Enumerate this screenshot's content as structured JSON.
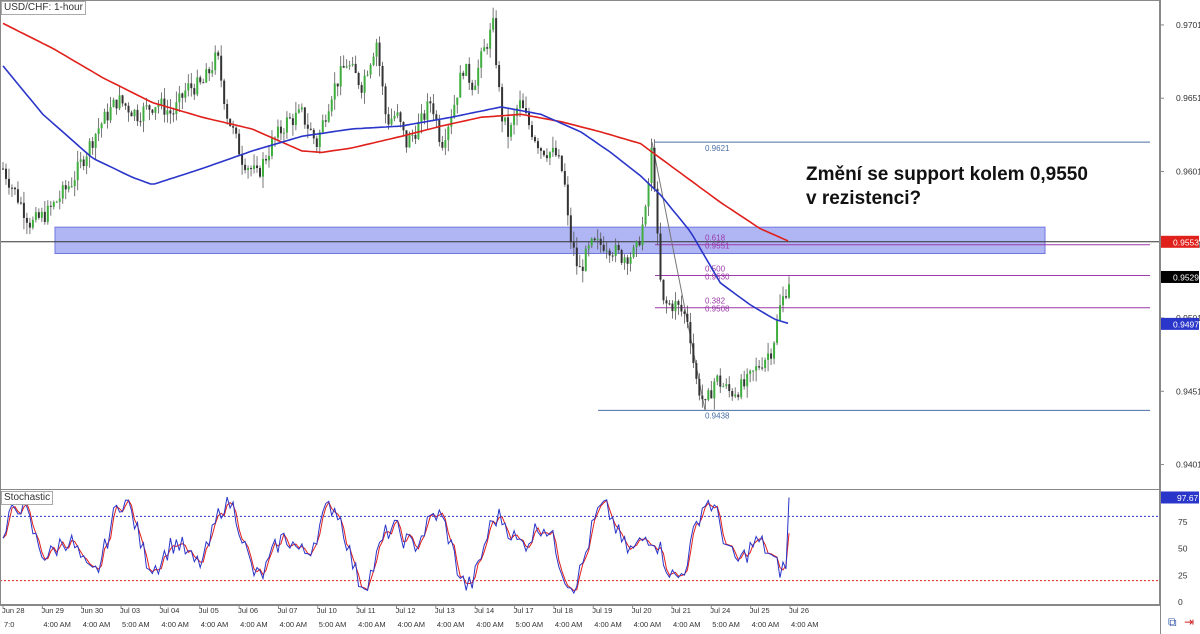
{
  "window": {
    "symbol_title": "USD/CHF: 1-hour",
    "indicator_title": "Stochastic"
  },
  "annotation": {
    "line1": "Změní se support kolem 0,9550",
    "line2": "v rezistenci?"
  },
  "colors": {
    "ma_fast": "#2a35c9",
    "ma_slow": "#e0201b",
    "support_zone": "#8f96f0",
    "fib_line": "#9b3aa8",
    "stoch_k": "#2a35c9",
    "stoch_d": "#e0201b"
  },
  "icons": [
    "layers-icon",
    "arrow-right-icon"
  ],
  "chart_data": [
    {
      "type": "candlestick",
      "title": "USD/CHF: 1-hour",
      "ylim": [
        0.9385,
        0.9718
      ],
      "y_ticks": [
        "0.9701",
        "0.9651",
        "0.9601",
        "0.9551",
        "0.9501",
        "0.9451",
        "0.9401"
      ],
      "y_tick_values": [
        0.9701,
        0.9651,
        0.9601,
        0.9551,
        0.9501,
        0.9451,
        0.9401
      ],
      "price_labels": [
        {
          "text": "0.9553",
          "value": 0.9553,
          "color": "#e0201b"
        },
        {
          "text": "0.9529",
          "value": 0.9529,
          "color": "#000000"
        },
        {
          "text": "0.9497",
          "value": 0.9497,
          "color": "#2a35c9"
        }
      ],
      "support_zone": [
        0.9545,
        0.9563
      ],
      "fibonacci": {
        "high": "0.9621",
        "low": "0.9438",
        "levels": [
          {
            "ratio": "0.618",
            "price": "0.9551"
          },
          {
            "ratio": "0.500",
            "price": "0.9530"
          },
          {
            "ratio": "0.382",
            "price": "0.9508"
          }
        ]
      },
      "close_series_keypoints": [
        [
          0,
          0.9603
        ],
        [
          15,
          0.9583
        ],
        [
          28,
          0.9565
        ],
        [
          45,
          0.9573
        ],
        [
          70,
          0.9595
        ],
        [
          95,
          0.963
        ],
        [
          115,
          0.965
        ],
        [
          135,
          0.964
        ],
        [
          155,
          0.9648
        ],
        [
          170,
          0.964
        ],
        [
          185,
          0.9658
        ],
        [
          200,
          0.966
        ],
        [
          215,
          0.968
        ],
        [
          225,
          0.964
        ],
        [
          240,
          0.961
        ],
        [
          255,
          0.9598
        ],
        [
          270,
          0.962
        ],
        [
          285,
          0.9635
        ],
        [
          300,
          0.964
        ],
        [
          315,
          0.962
        ],
        [
          330,
          0.9655
        ],
        [
          345,
          0.9675
        ],
        [
          360,
          0.966
        ],
        [
          375,
          0.969
        ],
        [
          385,
          0.9635
        ],
        [
          395,
          0.964
        ],
        [
          405,
          0.962
        ],
        [
          420,
          0.9635
        ],
        [
          430,
          0.965
        ],
        [
          440,
          0.962
        ],
        [
          452,
          0.9645
        ],
        [
          462,
          0.9672
        ],
        [
          472,
          0.966
        ],
        [
          482,
          0.9682
        ],
        [
          492,
          0.97
        ],
        [
          500,
          0.964
        ],
        [
          508,
          0.9625
        ],
        [
          518,
          0.9648
        ],
        [
          530,
          0.963
        ],
        [
          540,
          0.9617
        ],
        [
          555,
          0.9612
        ],
        [
          563,
          0.9598
        ],
        [
          568,
          0.956
        ],
        [
          578,
          0.9532
        ],
        [
          590,
          0.955
        ],
        [
          605,
          0.9552
        ],
        [
          620,
          0.9543
        ],
        [
          635,
          0.9545
        ],
        [
          645,
          0.9572
        ],
        [
          652,
          0.9621
        ],
        [
          658,
          0.954
        ],
        [
          662,
          0.951
        ],
        [
          675,
          0.951
        ],
        [
          688,
          0.95
        ],
        [
          695,
          0.946
        ],
        [
          705,
          0.944
        ],
        [
          715,
          0.946
        ],
        [
          730,
          0.945
        ],
        [
          745,
          0.9455
        ],
        [
          760,
          0.947
        ],
        [
          772,
          0.948
        ],
        [
          780,
          0.9508
        ],
        [
          790,
          0.9529
        ]
      ],
      "ma_fast_keypoints": [
        [
          0,
          0.9673
        ],
        [
          40,
          0.964
        ],
        [
          90,
          0.961
        ],
        [
          130,
          0.9597
        ],
        [
          150,
          0.9592
        ],
        [
          200,
          0.9603
        ],
        [
          250,
          0.9615
        ],
        [
          300,
          0.9625
        ],
        [
          350,
          0.963
        ],
        [
          400,
          0.9632
        ],
        [
          450,
          0.9638
        ],
        [
          500,
          0.9645
        ],
        [
          540,
          0.964
        ],
        [
          580,
          0.9628
        ],
        [
          610,
          0.9614
        ],
        [
          640,
          0.9598
        ],
        [
          660,
          0.9585
        ],
        [
          690,
          0.956
        ],
        [
          720,
          0.9525
        ],
        [
          750,
          0.951
        ],
        [
          775,
          0.95
        ],
        [
          790,
          0.9497
        ]
      ],
      "ma_slow_keypoints": [
        [
          0,
          0.9702
        ],
        [
          50,
          0.9685
        ],
        [
          100,
          0.9665
        ],
        [
          150,
          0.9648
        ],
        [
          200,
          0.9638
        ],
        [
          250,
          0.963
        ],
        [
          300,
          0.9615
        ],
        [
          320,
          0.9614
        ],
        [
          350,
          0.9617
        ],
        [
          400,
          0.9625
        ],
        [
          440,
          0.9632
        ],
        [
          480,
          0.9638
        ],
        [
          520,
          0.964
        ],
        [
          560,
          0.9635
        ],
        [
          600,
          0.9628
        ],
        [
          640,
          0.962
        ],
        [
          680,
          0.96
        ],
        [
          720,
          0.958
        ],
        [
          760,
          0.9562
        ],
        [
          790,
          0.9553
        ]
      ],
      "x_labels": [
        "Jun 28",
        "Jun 29",
        "Jun 30",
        "Jul 03",
        "Jul 04",
        "Jul 05",
        "Jul 06",
        "Jul 07",
        "Jul 10",
        "Jul 11",
        "Jul 12",
        "Jul 13",
        "Jul 14",
        "Jul 17",
        "Jul 18",
        "Jul 19",
        "Jul 20",
        "Jul 21",
        "Jul 24",
        "Jul 25",
        "Jul 26"
      ],
      "x_sub_labels": [
        "7:0",
        "4:00 AM",
        "4:00 AM",
        "5:00 AM",
        "4:00 AM",
        "4:00 AM",
        "4:00 AM",
        "4:00 AM",
        "5:00 AM",
        "4:00 AM",
        "4:00 AM",
        "4:00 AM",
        "4:00 AM",
        "5:00 AM",
        "4:00 AM",
        "4:00 AM",
        "4:00 AM",
        "4:00 AM",
        "5:00 AM",
        "4:00 AM",
        "4:00 AM"
      ]
    },
    {
      "type": "line",
      "title": "Stochastic",
      "ylim": [
        0,
        100
      ],
      "y_ticks": [
        "75",
        "50",
        "25",
        "0"
      ],
      "y_tick_values": [
        75,
        50,
        25,
        0
      ],
      "levels": [
        80,
        20
      ],
      "last_value": "97.67"
    }
  ]
}
